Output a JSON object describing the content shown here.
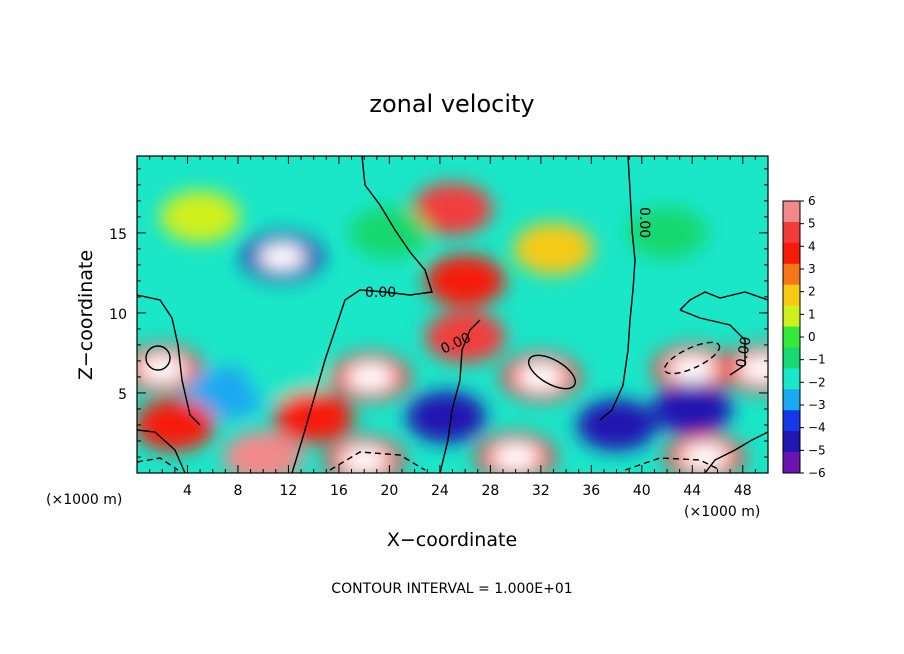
{
  "chart_data": {
    "type": "heatmap",
    "title": "zonal velocity",
    "xlabel": "X−coordinate",
    "ylabel": "Z−coordinate",
    "x_unit": "(×1000 m)",
    "x_unit_right": "(×1000 m)",
    "xlim": [
      0,
      50
    ],
    "ylim": [
      0,
      19.8
    ],
    "x_ticks": [
      4,
      8,
      12,
      16,
      20,
      24,
      28,
      32,
      36,
      40,
      44,
      48
    ],
    "y_ticks": [
      5,
      10,
      15
    ],
    "colorbar_levels": [
      6,
      5,
      4,
      3,
      2,
      1,
      0,
      -1,
      -2,
      -3,
      -4,
      -5,
      -6
    ],
    "colorbar_tick_labels": [
      "6",
      "5",
      "4",
      "3",
      "2",
      "1",
      "0",
      "−1",
      "−2",
      "−3",
      "−4",
      "−5",
      "−6"
    ],
    "colorbar_colors": [
      "#f08a8a",
      "#f23c3c",
      "#f51a0a",
      "#f7761a",
      "#f6ca14",
      "#cff01e",
      "#36e83a",
      "#18d870",
      "#1ae6c8",
      "#1aa8f0",
      "#1638e6",
      "#2016b0",
      "#6a14b0"
    ],
    "contour_labels": [
      "0.00",
      "0.00",
      "0.00",
      "0.00",
      "0.00"
    ],
    "contour_interval": "CONTOUR INTERVAL = 1.000E+01",
    "features": [
      {
        "x": 11.5,
        "z": 13.5,
        "value": -7
      },
      {
        "x": 25,
        "z": 16.5,
        "value": 5
      },
      {
        "x": 26,
        "z": 12,
        "value": 3.5
      },
      {
        "x": 2,
        "z": 6.5,
        "value": 8
      },
      {
        "x": 18.5,
        "z": 6,
        "value": 8
      },
      {
        "x": 32,
        "z": 6,
        "value": 8
      },
      {
        "x": 44,
        "z": 6.5,
        "value": 8
      },
      {
        "x": 49.5,
        "z": 6.5,
        "value": 8
      },
      {
        "x": 18,
        "z": 0.8,
        "value": 8
      },
      {
        "x": 30,
        "z": 1,
        "value": 8
      },
      {
        "x": 45,
        "z": 1,
        "value": 8
      },
      {
        "x": 10,
        "z": 1,
        "value": 6
      },
      {
        "x": 24.5,
        "z": 3.5,
        "value": -5
      },
      {
        "x": 38,
        "z": 3,
        "value": -5
      },
      {
        "x": 7,
        "z": 5,
        "value": -3
      },
      {
        "x": 12,
        "z": 6,
        "value": -2
      },
      {
        "x": 44,
        "z": 4,
        "value": -5
      },
      {
        "x": 26,
        "z": 8.5,
        "value": 5
      },
      {
        "x": 14,
        "z": 3.5,
        "value": 4
      },
      {
        "x": 3,
        "z": 3,
        "value": 4
      },
      {
        "x": 42,
        "z": 15,
        "value": -1.5
      },
      {
        "x": 20,
        "z": 15,
        "value": -1
      },
      {
        "x": 5,
        "z": 16,
        "value": 0.5
      },
      {
        "x": 33,
        "z": 14,
        "value": 2
      }
    ]
  }
}
